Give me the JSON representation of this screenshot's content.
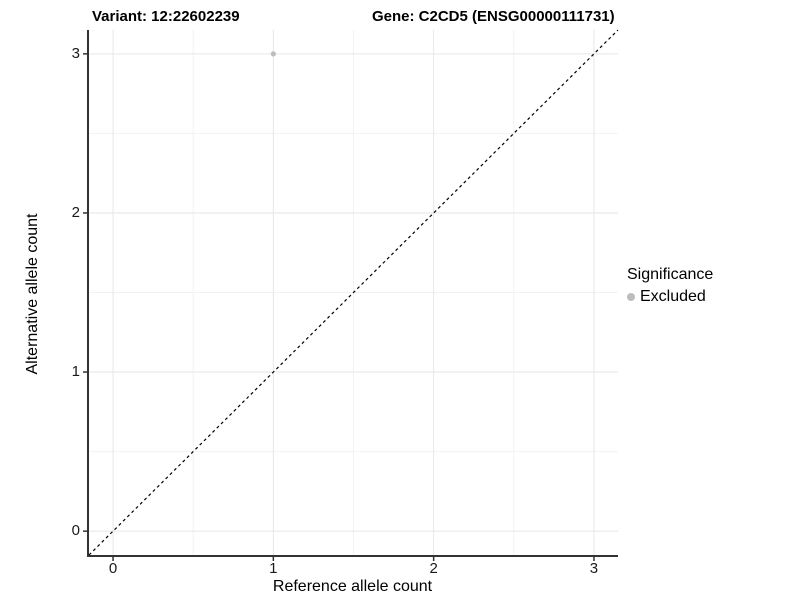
{
  "header": {
    "variant_title": "Variant: 12:22602239",
    "gene_title": "Gene: C2CD5 (ENSG00000111731)"
  },
  "chart_data": {
    "type": "scatter",
    "title": "Variant: 12:22602239   Gene: C2CD5 (ENSG00000111731)",
    "xlabel": "Reference allele count",
    "ylabel": "Alternative allele count",
    "xlim": [
      -0.15,
      3.15
    ],
    "ylim": [
      -0.15,
      3.15
    ],
    "x_ticks": [
      0,
      1,
      2,
      3
    ],
    "y_ticks": [
      0,
      1,
      2,
      3
    ],
    "x_minor_ticks": [
      0.5,
      1.5,
      2.5
    ],
    "y_minor_ticks": [
      0.5,
      1.5,
      2.5
    ],
    "grid": true,
    "points": [
      {
        "x": 1,
        "y": 3,
        "significance": "Excluded"
      }
    ],
    "identity_line": {
      "style": "dashed",
      "from": [
        -0.15,
        -0.15
      ],
      "to": [
        3.15,
        3.15
      ],
      "color": "#000000"
    },
    "legend": {
      "title": "Significance",
      "position": "right",
      "entries": [
        {
          "label": "Excluded",
          "color": "#bdbdbd"
        }
      ]
    },
    "colors": {
      "point": "#bdbdbd",
      "grid_major": "#e6e6e6",
      "grid_minor": "#f2f2f2",
      "axis": "#333333",
      "tick": "#333333"
    }
  }
}
